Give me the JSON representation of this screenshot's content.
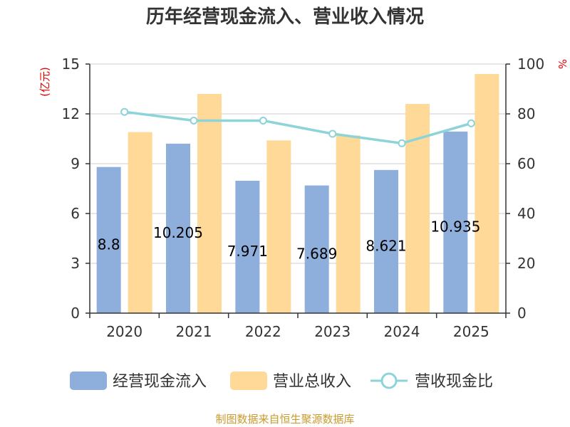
{
  "title": "历年经营现金流入、营业收入情况",
  "source": "制图数据来自恒生聚源数据库",
  "colors": {
    "cash_inflow": "#8eaedb",
    "revenue": "#fed998",
    "ratio": "#8dd4d8",
    "axis": "#333333",
    "grid": "#cccccc",
    "unit": "#e60000",
    "source": "#c99a2e"
  },
  "chart_data": {
    "type": "bar",
    "title": "历年经营现金流入、营业收入情况",
    "categories": [
      "2020",
      "2021",
      "2022",
      "2023",
      "2024",
      "2025"
    ],
    "y_left": {
      "unit": "(亿元)",
      "range": [
        0,
        15
      ],
      "ticks": [
        "0",
        "3",
        "6",
        "9",
        "12",
        "15"
      ]
    },
    "y_right": {
      "unit": "%",
      "range": [
        0,
        100
      ],
      "ticks": [
        "0",
        "20",
        "40",
        "60",
        "80",
        "100"
      ]
    },
    "grid": true,
    "legend_position": "bottom",
    "series": [
      {
        "name": "经营现金流入",
        "type": "bar",
        "axis": "left",
        "values": [
          8.8,
          10.205,
          7.971,
          7.689,
          8.621,
          10.935
        ],
        "labels": [
          "8.8",
          "10.205",
          "7.971",
          "7.689",
          "8.621",
          "10.935"
        ]
      },
      {
        "name": "营业总收入",
        "type": "bar",
        "axis": "left",
        "values": [
          10.9,
          13.2,
          10.4,
          10.7,
          12.6,
          14.4
        ]
      },
      {
        "name": "营收现金比",
        "type": "line",
        "axis": "right",
        "values": [
          80.8,
          77.3,
          77.3,
          72.0,
          68.2,
          76.2
        ]
      }
    ]
  }
}
